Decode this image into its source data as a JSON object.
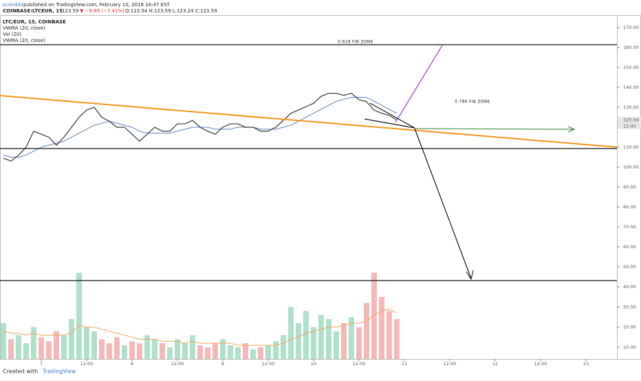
{
  "header": {
    "publisher": "ocon442",
    "published": "published on TradingView.com, February 10, 2018 16:47 EST",
    "symbol": "COINBASE:LTCEUR, 15",
    "last": "123.59",
    "change": "▼ −9.89 (−7.41%)",
    "ohlc": "O:123.54 H:123.59 L:123.24 C:123.59"
  },
  "footer": {
    "created": "Created with",
    "brand": "TradingView"
  },
  "chart_data": [
    {
      "type": "line",
      "annotations": [
        "0.618 FIB ZONE",
        "0.786 FIB ZONE"
      ],
      "x": [
        -10,
        -8,
        -6,
        -4,
        -2,
        0,
        2,
        4,
        6,
        8,
        10,
        12,
        14,
        16,
        18,
        20,
        22,
        24,
        26,
        28,
        30,
        32,
        34,
        36,
        38,
        40,
        42,
        44,
        46,
        48,
        50,
        52,
        54,
        56,
        58,
        60,
        62,
        64,
        66,
        68,
        70,
        72,
        74,
        76,
        78,
        80,
        82,
        84,
        86,
        88,
        90,
        92,
        94
      ],
      "series": [
        {
          "name": "LTC/EUR, 15, COINBASE",
          "color": "#333333",
          "values": [
            104.5,
            103,
            106,
            110,
            118,
            116.5,
            115,
            111,
            115,
            120,
            125,
            128.6,
            130,
            125,
            123,
            120,
            120,
            116.5,
            113,
            116.5,
            120,
            118,
            118,
            121.7,
            121.7,
            123.4,
            120,
            118,
            116.5,
            120,
            121.7,
            121.7,
            120,
            120,
            118,
            118,
            120,
            123.4,
            127,
            128.6,
            130.3,
            132,
            135.5,
            137,
            137,
            136,
            137,
            133.8,
            132.8,
            128.6,
            127,
            125.9,
            123.6
          ]
        },
        {
          "name": "VWMA (20, close)",
          "color": "#5b7dbf",
          "values": [
            106,
            105,
            105,
            106,
            108,
            110,
            111,
            112,
            113,
            115,
            117,
            119,
            121,
            122,
            123,
            122,
            121,
            120,
            118,
            117,
            117,
            117,
            117,
            118,
            119,
            120,
            120,
            120,
            119,
            119,
            119,
            120,
            120,
            120,
            119,
            119,
            119,
            120,
            121,
            123,
            125,
            127,
            129,
            131,
            133,
            134,
            135,
            135,
            135,
            133,
            131,
            129,
            127
          ]
        }
      ],
      "last_value": 123.59,
      "countdown": "12:45",
      "xlim": [
        -10.9,
        152.2
      ],
      "ylim": [
        43.1,
        176.2
      ],
      "yticks": [
        {
          "value": 50,
          "label": "50.00"
        },
        {
          "value": 60,
          "label": "60.00"
        },
        {
          "value": 70,
          "label": "70.00"
        },
        {
          "value": 80,
          "label": "80.00"
        },
        {
          "value": 90,
          "label": "90.00"
        },
        {
          "value": 100,
          "label": "100.00"
        },
        {
          "value": 110,
          "label": "110.00"
        },
        {
          "value": 130,
          "label": "130.00"
        },
        {
          "value": 140,
          "label": "140.00"
        },
        {
          "value": 150,
          "label": "150.00"
        },
        {
          "value": 160,
          "label": "160.00"
        },
        {
          "value": 170,
          "label": "170.00"
        }
      ]
    },
    {
      "type": "bar",
      "x": [
        -10,
        -8,
        -6,
        -4,
        -2,
        0,
        2,
        4,
        6,
        8,
        10,
        12,
        14,
        16,
        18,
        20,
        22,
        24,
        26,
        28,
        30,
        32,
        34,
        36,
        38,
        40,
        42,
        44,
        46,
        48,
        50,
        52,
        54,
        56,
        58,
        60,
        62,
        64,
        66,
        68,
        70,
        72,
        74,
        76,
        78,
        80,
        82,
        84,
        86,
        88,
        90,
        92,
        94
      ],
      "series": [
        {
          "name": "Vol (20)",
          "colors": {
            "up": "#9ad8bd",
            "down": "#f3a6a6"
          },
          "values": [
            22,
            14,
            16,
            12,
            20,
            15,
            13,
            18,
            16,
            24,
            47,
            20,
            18,
            14,
            12,
            15,
            11,
            13,
            12,
            16,
            14,
            12,
            10,
            14,
            12,
            16,
            11,
            10,
            12,
            14,
            11,
            10,
            12,
            9,
            10,
            11,
            13,
            16,
            30,
            22,
            28,
            20,
            26,
            24,
            18,
            22,
            25,
            20,
            32,
            47,
            35,
            28,
            24
          ]
        },
        {
          "name": "VWMA (20, close)",
          "color": "#f4a460",
          "values": [
            18,
            17,
            17,
            16,
            17,
            16,
            16,
            16,
            16,
            17,
            21,
            20,
            20,
            19,
            18,
            17,
            16,
            15,
            14,
            14,
            14,
            13,
            13,
            13,
            12,
            13,
            12,
            12,
            12,
            12,
            12,
            11,
            11,
            11,
            11,
            11,
            11,
            12,
            14,
            15,
            17,
            18,
            19,
            20,
            20,
            21,
            22,
            22,
            23,
            26,
            28,
            29,
            27
          ]
        }
      ],
      "xlim": [
        -10.9,
        152.2
      ],
      "ylim": [
        4.2,
        43.1
      ],
      "xticks": [
        {
          "value": 0,
          "label": "7"
        },
        {
          "value": 12,
          "label": "12:00"
        },
        {
          "value": 24,
          "label": "8"
        },
        {
          "value": 36,
          "label": "12:00"
        },
        {
          "value": 48,
          "label": "9"
        },
        {
          "value": 60,
          "label": "12:00"
        },
        {
          "value": 72,
          "label": "10"
        },
        {
          "value": 84,
          "label": "12:00"
        },
        {
          "value": 96,
          "label": "11"
        },
        {
          "value": 108,
          "label": "12:00"
        },
        {
          "value": 120,
          "label": "12"
        },
        {
          "value": 132,
          "label": "12:00"
        },
        {
          "value": 144,
          "label": "13"
        }
      ],
      "yticks": [
        {
          "value": 10,
          "label": "10.00"
        },
        {
          "value": 20,
          "label": "20.00"
        },
        {
          "value": 30,
          "label": "30.00"
        },
        {
          "value": 40,
          "label": "40.00"
        }
      ]
    }
  ]
}
